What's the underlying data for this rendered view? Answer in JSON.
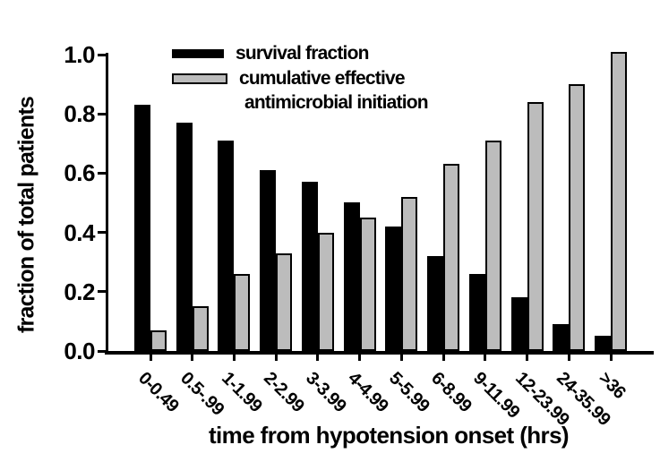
{
  "figure": {
    "ylabel": "fraction of total patients",
    "xlabel": "time from hypotension onset (hrs)",
    "legend": {
      "item1_label": "survival fraction",
      "item2_line1": "cumulative effective",
      "item2_line2": "antimicrobial initiation"
    },
    "colors": {
      "survival_bar": "#000000",
      "cumulative_bar_fill": "#bcbcbc",
      "cumulative_bar_border": "#000000",
      "axis": "#000000",
      "background": "#ffffff"
    }
  },
  "chart_data": {
    "type": "bar",
    "title": "",
    "xlabel": "time from hypotension onset (hrs)",
    "ylabel": "fraction of total patients",
    "categories": [
      "0-0.49",
      "0.5-.99",
      "1-1.99",
      "2-2.99",
      "3-3.99",
      "4-4.99",
      "5-5.99",
      "6-8.99",
      "9-11.99",
      "12-23.99",
      "24-35.99",
      ">36"
    ],
    "series": [
      {
        "name": "survival fraction",
        "color": "#000000",
        "values": [
          0.83,
          0.77,
          0.71,
          0.61,
          0.57,
          0.5,
          0.42,
          0.32,
          0.26,
          0.18,
          0.09,
          0.05
        ]
      },
      {
        "name": "cumulative effective antimicrobial initiation",
        "color": "#bcbcbc",
        "values": [
          0.07,
          0.15,
          0.26,
          0.33,
          0.4,
          0.45,
          0.52,
          0.63,
          0.71,
          0.84,
          0.9,
          1.01
        ]
      }
    ],
    "ylim": [
      0,
      1.0
    ],
    "yticks": [
      0.0,
      0.2,
      0.4,
      0.6,
      0.8,
      1.0
    ],
    "ytick_labels": [
      "0.0",
      "0.2",
      "0.4",
      "0.6",
      "0.8",
      "1.0"
    ],
    "xtick_rotation_deg": 45,
    "grid": false,
    "legend_position": "upper-left-inside",
    "bar_style": "paired-adjacent"
  }
}
